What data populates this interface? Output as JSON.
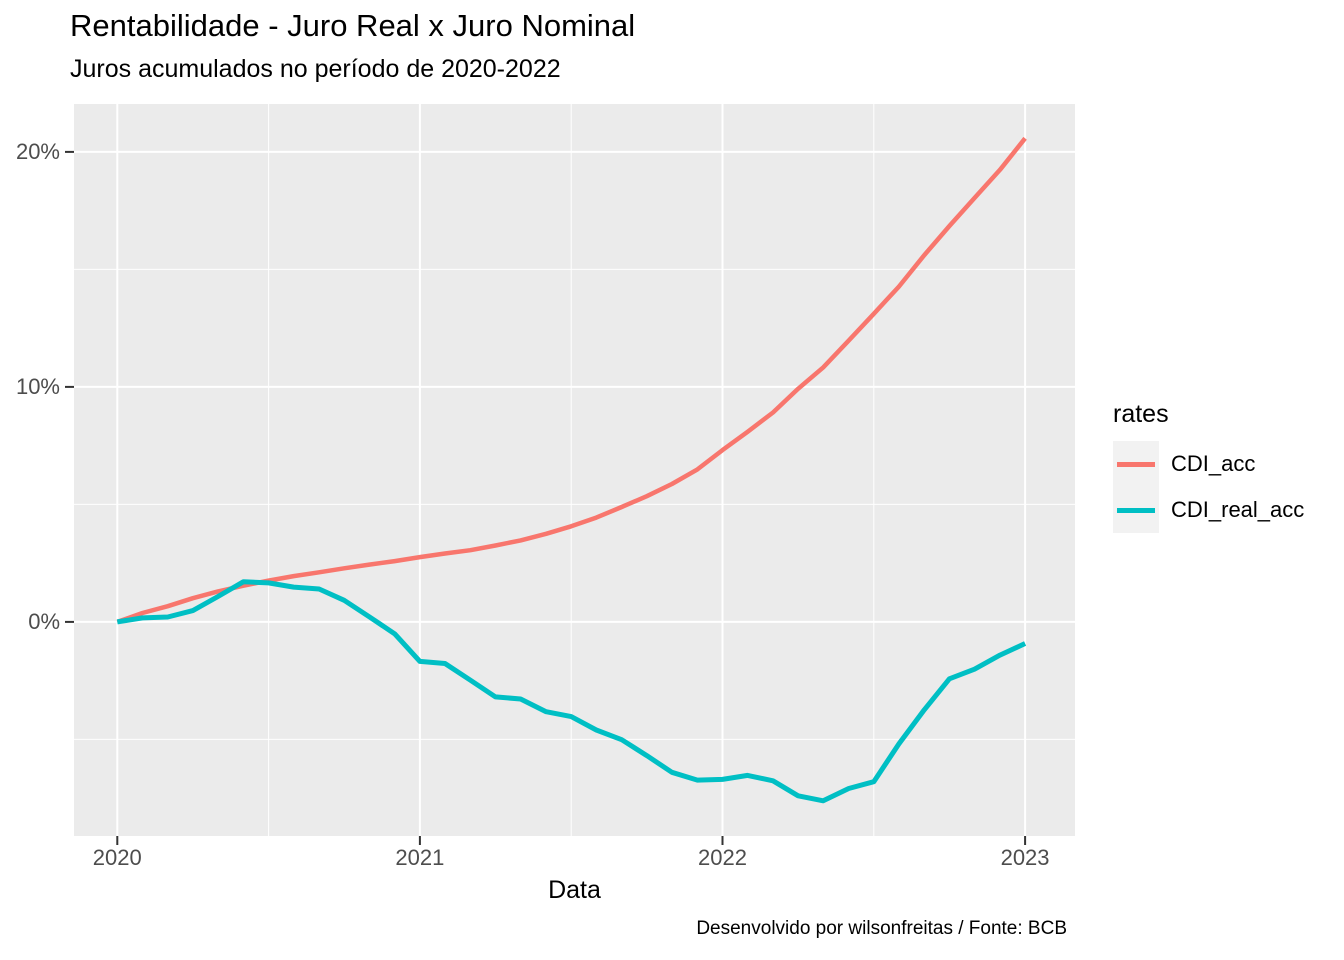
{
  "header": {
    "title": "Rentabilidade - Juro Real x Juro Nominal",
    "subtitle": "Juros acumulados no período de 2020-2022"
  },
  "caption": "Desenvolvido por wilsonfreitas / Fonte: BCB",
  "axes": {
    "x_label": "Data",
    "x_ticks": [
      "2020",
      "2021",
      "2022",
      "2023"
    ],
    "y_ticks": [
      "0%",
      "10%",
      "20%"
    ]
  },
  "legend": {
    "title": "rates",
    "items": [
      {
        "label": "CDI_acc",
        "color": "#F8766D"
      },
      {
        "label": "CDI_real_acc",
        "color": "#00BFC4"
      }
    ]
  },
  "colors": {
    "background": "#FFFFFF",
    "panel": "#EBEBEB",
    "grid": "#FFFFFF",
    "axis_text": "#4D4D4D",
    "tick_mark": "#333333",
    "text": "#000000",
    "legend_key": "#F2F2F2"
  },
  "chart_data": {
    "type": "line",
    "title": "Rentabilidade - Juro Real x Juro Nominal",
    "subtitle": "Juros acumulados no período de 2020-2022",
    "xlabel": "Data",
    "ylabel": "",
    "x_unit": "decimal_year (monthly points, Jan 2020 through Dec 2022, values in percent)",
    "x": [
      2020.0,
      2020.083,
      2020.167,
      2020.25,
      2020.333,
      2020.417,
      2020.5,
      2020.583,
      2020.667,
      2020.75,
      2020.833,
      2020.917,
      2021.0,
      2021.083,
      2021.167,
      2021.25,
      2021.333,
      2021.417,
      2021.5,
      2021.583,
      2021.667,
      2021.75,
      2021.833,
      2021.917,
      2022.0,
      2022.083,
      2022.167,
      2022.25,
      2022.333,
      2022.417,
      2022.5,
      2022.583,
      2022.667,
      2022.75,
      2022.833,
      2022.917,
      2023.0
    ],
    "series": [
      {
        "name": "CDI_acc",
        "color": "#F8766D",
        "values": [
          0.0,
          0.38,
          0.67,
          1.01,
          1.3,
          1.54,
          1.76,
          1.95,
          2.11,
          2.28,
          2.44,
          2.59,
          2.76,
          2.91,
          3.05,
          3.25,
          3.47,
          3.75,
          4.07,
          4.44,
          4.89,
          5.35,
          5.87,
          6.49,
          7.31,
          8.09,
          8.91,
          9.92,
          10.83,
          11.97,
          13.11,
          14.27,
          15.61,
          16.85,
          18.04,
          19.24,
          20.58
        ]
      },
      {
        "name": "CDI_real_acc",
        "color": "#00BFC4",
        "values": [
          0.0,
          0.17,
          0.21,
          0.48,
          1.08,
          1.71,
          1.66,
          1.48,
          1.4,
          0.92,
          0.22,
          -0.51,
          -1.68,
          -1.77,
          -2.48,
          -3.19,
          -3.28,
          -3.82,
          -4.03,
          -4.6,
          -5.01,
          -5.69,
          -6.4,
          -6.73,
          -6.7,
          -6.53,
          -6.76,
          -7.4,
          -7.61,
          -7.09,
          -6.8,
          -5.19,
          -3.74,
          -2.42,
          -2.01,
          -1.41,
          -0.92
        ]
      }
    ],
    "xlim": [
      2019.857,
      2023.165
    ],
    "ylim": [
      -9.11,
      22.04
    ],
    "x_major": [
      2020,
      2021,
      2022,
      2023
    ],
    "x_minor": [
      2020.5,
      2021.5,
      2022.5
    ],
    "y_major": [
      0,
      10,
      20
    ],
    "y_minor": [
      -5,
      5,
      15
    ],
    "grid": true,
    "legend_position": "right"
  }
}
